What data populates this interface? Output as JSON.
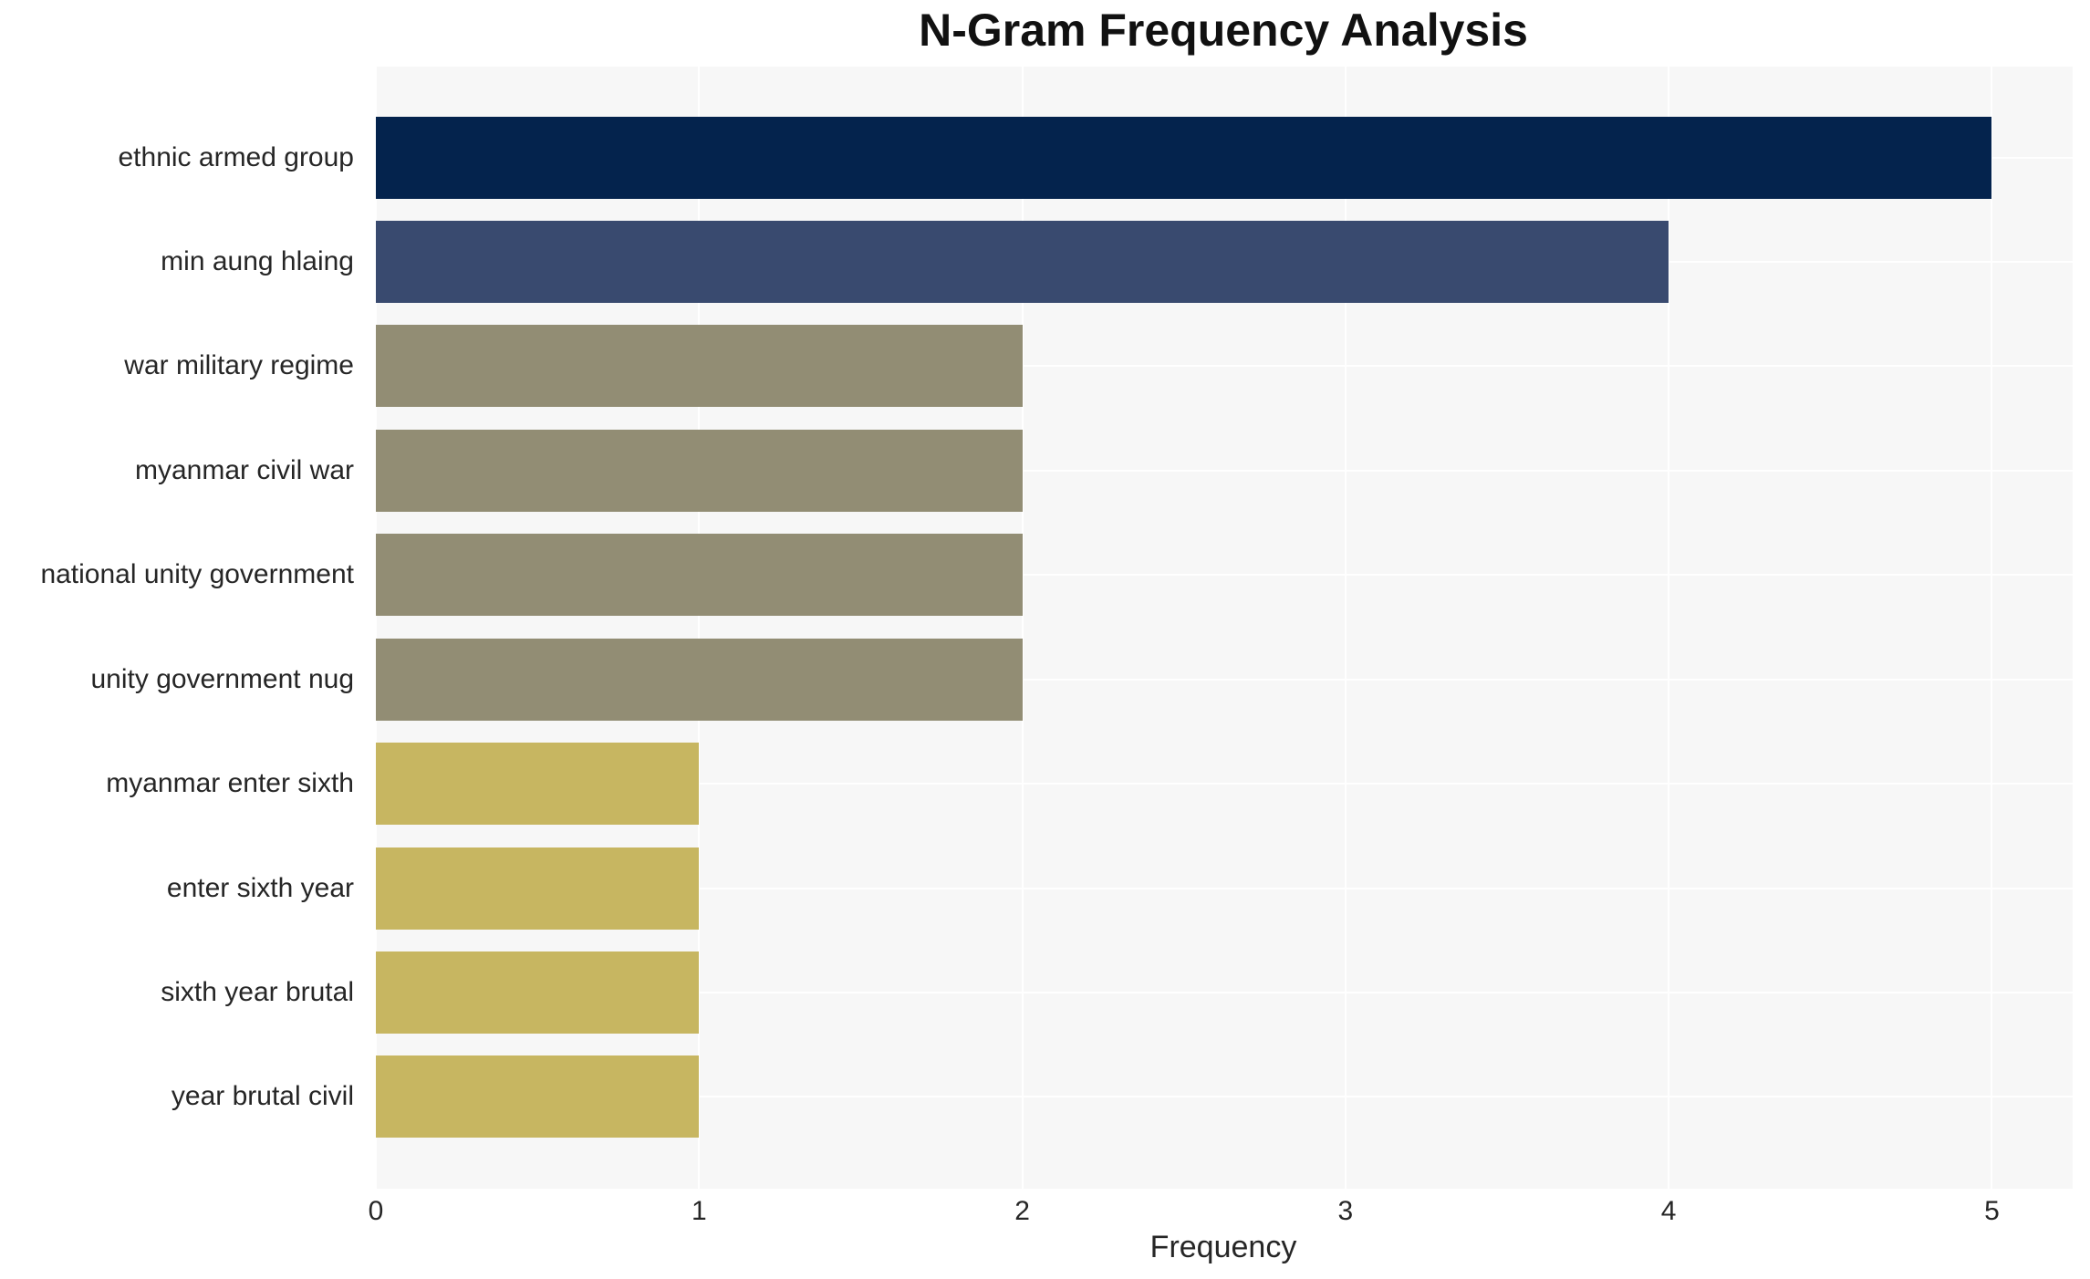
{
  "title": "N-Gram Frequency Analysis",
  "chart_data": {
    "type": "bar",
    "orientation": "horizontal",
    "title": "N-Gram Frequency Analysis",
    "xlabel": "Frequency",
    "ylabel": "",
    "categories": [
      "ethnic armed group",
      "min aung hlaing",
      "war military regime",
      "myanmar civil war",
      "national unity government",
      "unity government nug",
      "myanmar enter sixth",
      "enter sixth year",
      "sixth year brutal",
      "year brutal civil"
    ],
    "values": [
      5,
      4,
      2,
      2,
      2,
      2,
      1,
      1,
      1,
      1
    ],
    "bar_colors": [
      "#04234d",
      "#394a6f",
      "#928d74",
      "#928d74",
      "#928d74",
      "#928d74",
      "#c7b661",
      "#c7b661",
      "#c7b661",
      "#c7b661"
    ],
    "x_ticks": [
      0,
      1,
      2,
      3,
      4,
      5
    ],
    "xlim": [
      0,
      5.25
    ],
    "grid": true,
    "legend": false,
    "plot_background_color": "#f7f7f7",
    "grid_color": "#ffffff",
    "text_color": "#262626",
    "title_color": "#111111"
  }
}
